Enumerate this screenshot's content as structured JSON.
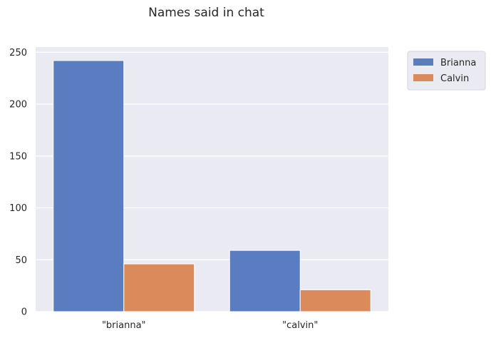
{
  "chart_data": {
    "type": "bar",
    "title": "Names said in chat",
    "xlabel": "",
    "ylabel": "",
    "categories": [
      "\"brianna\"",
      "\"calvin\""
    ],
    "series": [
      {
        "name": "Brianna",
        "values": [
          242,
          59
        ],
        "color": "#5a7dc2"
      },
      {
        "name": "Calvin",
        "values": [
          46,
          21
        ],
        "color": "#db8a5b"
      }
    ],
    "ylim": [
      0,
      255
    ],
    "yticks": [
      0,
      50,
      100,
      150,
      200,
      250
    ],
    "grid": true,
    "legend_position": "outside-top-right",
    "background_color": "#eaeaf2",
    "grid_color": "#ffffff"
  }
}
